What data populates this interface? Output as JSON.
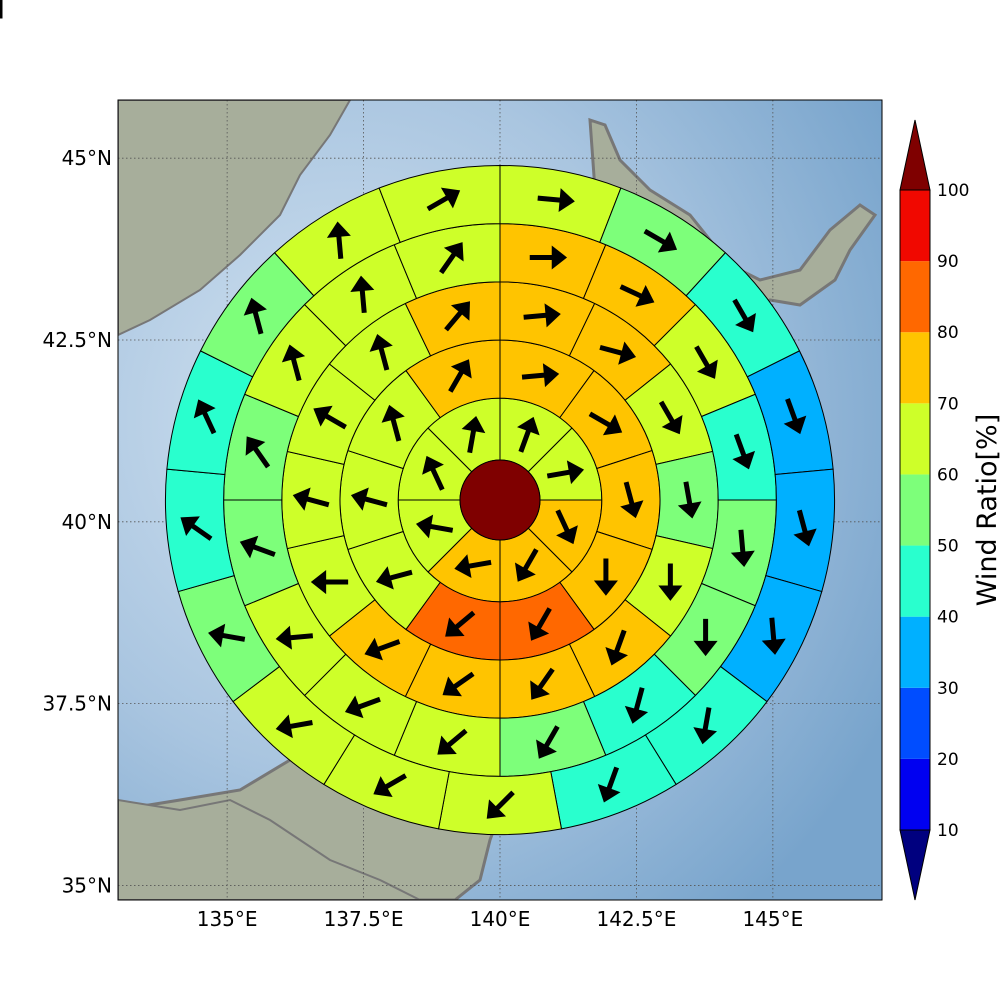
{
  "map": {
    "extent": {
      "lon_min": 133.0,
      "lon_max": 147.0,
      "lat_min": 34.8,
      "lat_max": 45.8
    },
    "center": {
      "lon": 140.0,
      "lat": 40.3
    },
    "lon_ticks": [
      {
        "value": 135,
        "label": "135°E"
      },
      {
        "value": 137.5,
        "label": "137.5°E"
      },
      {
        "value": 140,
        "label": "140°E"
      },
      {
        "value": 142.5,
        "label": "142.5°E"
      },
      {
        "value": 145,
        "label": "145°E"
      }
    ],
    "lat_ticks": [
      {
        "value": 45,
        "label": "45°N"
      },
      {
        "value": 42.5,
        "label": "42.5°N"
      },
      {
        "value": 40,
        "label": "40°N"
      },
      {
        "value": 37.5,
        "label": "37.5°N"
      },
      {
        "value": 35,
        "label": "35°N"
      }
    ],
    "colors": {
      "sea": "#8fb4d6",
      "land": "#9aa692",
      "coast": "#777777",
      "grid": "#555555"
    }
  },
  "colorbar": {
    "title": "Wind Ratio[%]",
    "labels": [
      "10",
      "20",
      "30",
      "40",
      "50",
      "60",
      "70",
      "80",
      "90",
      "100"
    ],
    "under_color": "#00007f",
    "over_color": "#7f0000",
    "bins": [
      {
        "from": 10,
        "to": 20,
        "color": "#0000f1"
      },
      {
        "from": 20,
        "to": 30,
        "color": "#004dff"
      },
      {
        "from": 30,
        "to": 40,
        "color": "#00b0ff"
      },
      {
        "from": 40,
        "to": 50,
        "color": "#29ffce"
      },
      {
        "from": 50,
        "to": 60,
        "color": "#7dff7a"
      },
      {
        "from": 60,
        "to": 70,
        "color": "#ceff29"
      },
      {
        "from": 70,
        "to": 80,
        "color": "#ffc400"
      },
      {
        "from": 80,
        "to": 90,
        "color": "#ff6800"
      },
      {
        "from": 90,
        "to": 100,
        "color": "#f10800"
      }
    ]
  },
  "chart_data": {
    "type": "polar-wind-sectors",
    "center_value_percent": 100,
    "ring_radii_deg_lat": [
      0.55,
      1.4,
      2.2,
      3.0,
      3.8,
      4.6
    ],
    "rings": [
      {
        "ring": 1,
        "values": [
          65,
          65,
          70,
          75,
          75,
          65,
          65,
          65
        ],
        "wind_dir_deg": [
          20,
          80,
          155,
          210,
          260,
          280,
          335,
          10
        ]
      },
      {
        "ring": 2,
        "values": [
          75,
          75,
          75,
          70,
          85,
          85,
          65,
          65,
          65,
          75
        ],
        "wind_dir_deg": [
          85,
          120,
          165,
          180,
          210,
          230,
          255,
          285,
          345,
          30
        ]
      },
      {
        "ring": 3,
        "values": [
          75,
          75,
          65,
          55,
          65,
          75,
          75,
          75,
          75,
          65,
          65,
          65,
          65,
          75
        ],
        "wind_dir_deg": [
          85,
          105,
          150,
          170,
          180,
          200,
          215,
          235,
          250,
          270,
          285,
          300,
          345,
          40
        ]
      },
      {
        "ring": 4,
        "values": [
          75,
          75,
          65,
          45,
          55,
          55,
          45,
          55,
          65,
          65,
          65,
          55,
          55,
          65,
          65,
          65
        ],
        "wind_dir_deg": [
          90,
          115,
          150,
          160,
          175,
          180,
          195,
          210,
          230,
          250,
          265,
          290,
          325,
          345,
          355,
          35
        ]
      },
      {
        "ring": 5,
        "values": [
          65,
          55,
          45,
          35,
          35,
          35,
          45,
          45,
          65,
          65,
          65,
          55,
          45,
          45,
          55,
          65,
          65
        ],
        "wind_dir_deg": [
          95,
          120,
          150,
          160,
          165,
          175,
          190,
          200,
          225,
          240,
          260,
          280,
          305,
          335,
          345,
          355,
          60
        ]
      },
      {
        "ring": 6,
        "values": [
          65,
          55,
          45,
          35,
          25,
          25,
          35,
          35,
          35,
          45,
          65,
          65,
          55,
          45,
          45,
          35,
          35,
          45,
          45,
          55
        ],
        "wind_dir_deg": [
          80,
          110,
          135,
          150,
          160,
          170,
          180,
          195,
          210,
          225,
          240,
          250,
          265,
          280,
          290,
          300,
          320,
          345,
          355,
          35
        ]
      }
    ]
  }
}
